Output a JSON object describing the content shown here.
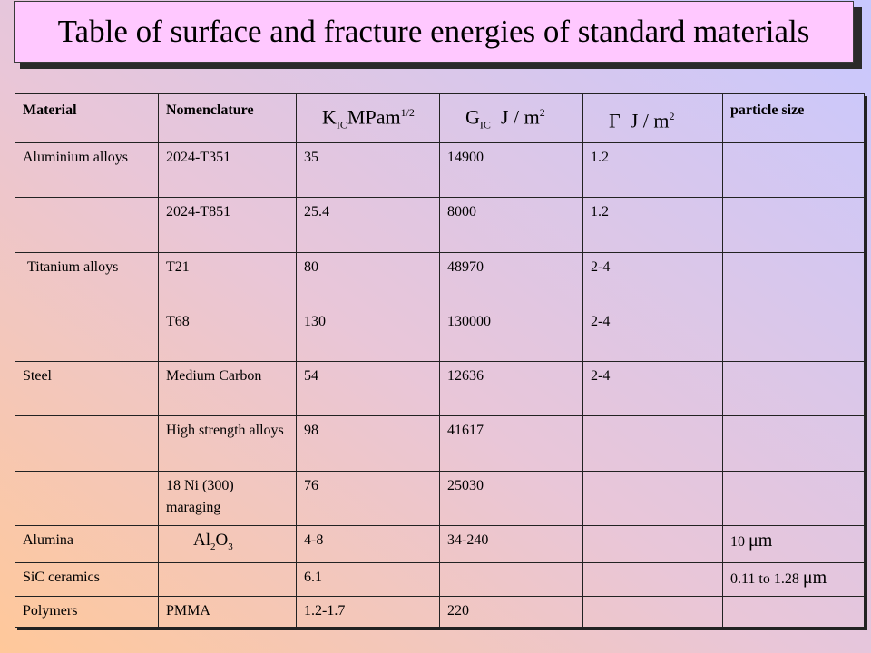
{
  "title": "Table of surface and fracture energies of standard materials",
  "headers": {
    "material": "Material",
    "nomenclature": "Nomenclature",
    "kic_sym": "K",
    "kic_sub": "IC",
    "kic_unit": "MPam",
    "kic_exp": "1/2",
    "gic_sym": "G",
    "gic_sub": "IC",
    "gic_unit": "J / m",
    "gic_exp": "2",
    "gamma_sym": "Γ",
    "gamma_unit": "J / m",
    "gamma_exp": "2",
    "particle": "particle size"
  },
  "rows": [
    {
      "material": "Aluminium alloys",
      "nomenclature": "2024-T351",
      "kic": "35",
      "gic": "14900",
      "gamma": "1.2",
      "particle": ""
    },
    {
      "material": "",
      "nomenclature": "2024-T851",
      "kic": "25.4",
      "gic": "8000",
      "gamma": "1.2",
      "particle": ""
    },
    {
      "material": "Titanium alloys",
      "nomenclature": "T21",
      "kic": "80",
      "gic": "48970",
      "gamma": "2-4",
      "particle": ""
    },
    {
      "material": "",
      "nomenclature": "T68",
      "kic": "130",
      "gic": "130000",
      "gamma": "2-4",
      "particle": ""
    },
    {
      "material": "Steel",
      "nomenclature": "Medium Carbon",
      "kic": "54",
      "gic": "12636",
      "gamma": "2-4",
      "particle": ""
    },
    {
      "material": "",
      "nomenclature": "High strength alloys",
      "kic": "98",
      "gic": "41617",
      "gamma": "",
      "particle": ""
    },
    {
      "material": "",
      "nomenclature": "18 Ni (300) maraging",
      "kic": "76",
      "gic": "25030",
      "gamma": "",
      "particle": ""
    }
  ],
  "alumina": {
    "material": "Alumina",
    "chem_al": "Al",
    "chem_al_sub": "2",
    "chem_o": "O",
    "chem_o_sub": "3",
    "kic": "4-8",
    "gic": "34-240",
    "gamma": "",
    "particle": "10",
    "particle_unit": "μm"
  },
  "sic": {
    "material": "SiC ceramics",
    "nomenclature": "",
    "kic": "6.1",
    "gic": "",
    "gamma": "",
    "particle": "0.11 to 1.28",
    "particle_unit": "μm"
  },
  "polymers": {
    "material": "Polymers",
    "nomenclature": "PMMA",
    "kic": "1.2-1.7",
    "gic": "220",
    "gamma": "",
    "particle": ""
  }
}
